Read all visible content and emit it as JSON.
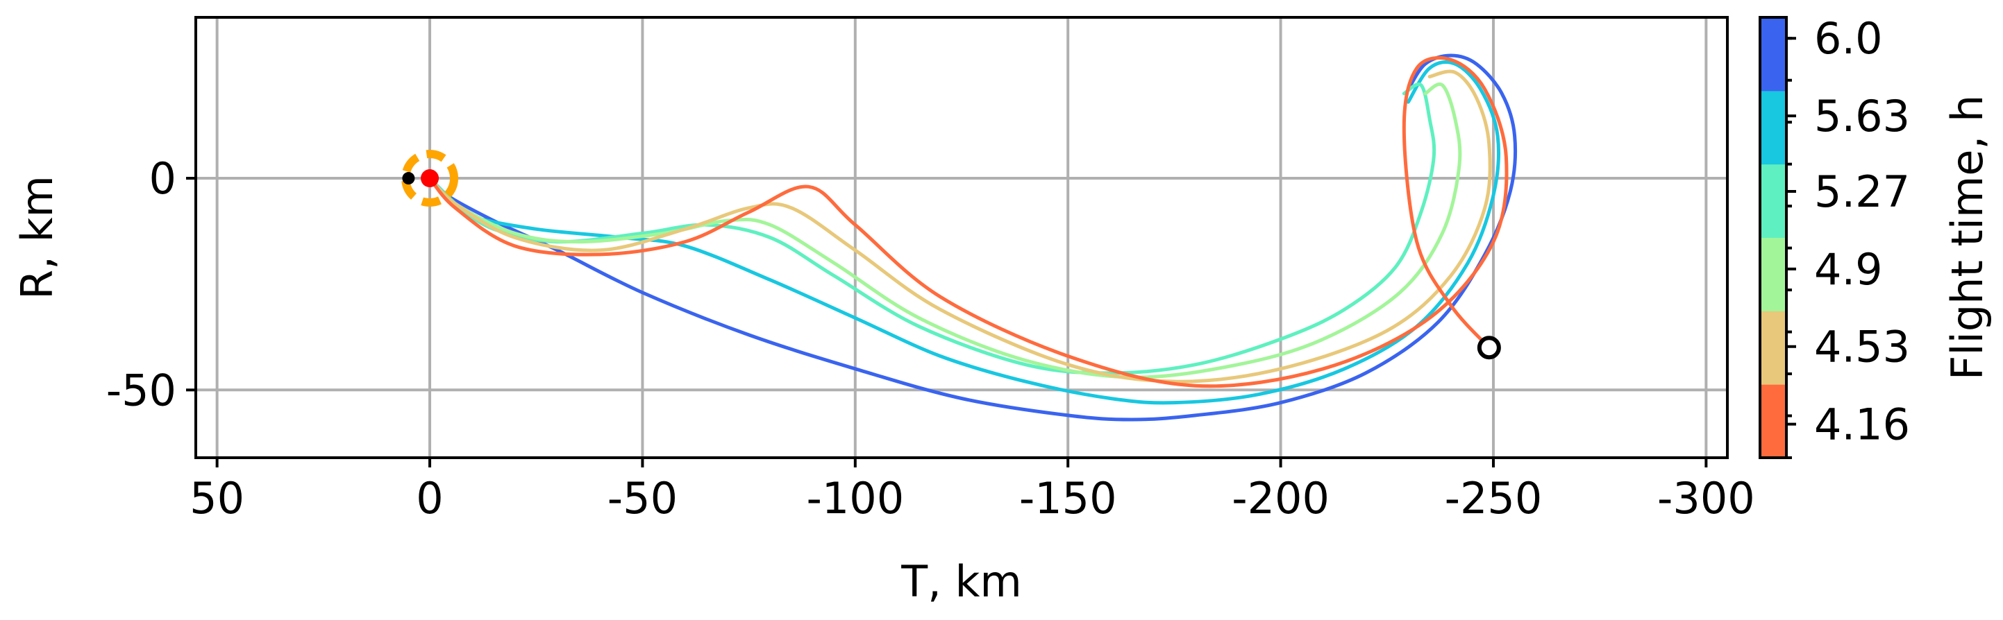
{
  "chart_data": {
    "type": "line",
    "title": "",
    "xlabel": "T, km",
    "ylabel": "R, km",
    "xlim": [
      55,
      -305
    ],
    "ylim": [
      -66,
      38
    ],
    "x_ticks": [
      50,
      0,
      -50,
      -100,
      -150,
      -200,
      -250,
      -300
    ],
    "x_tick_labels": [
      "50",
      "0",
      "-50",
      "-100",
      "-150",
      "-200",
      "-250",
      "-300"
    ],
    "y_ticks": [
      0,
      -50
    ],
    "y_tick_labels": [
      "0",
      "-50"
    ],
    "grid": true,
    "colorbar": {
      "label": "Flight time, h",
      "range": [
        4.0,
        6.1
      ],
      "ticks": [
        6.0,
        5.63,
        5.27,
        4.9,
        4.53,
        4.16
      ],
      "tick_labels": [
        "6.0",
        "5.63",
        "5.27",
        "4.9",
        "4.53",
        "4.16"
      ],
      "colors": [
        "#ff6b3d",
        "#e8c87a",
        "#a3f59a",
        "#5ef0c0",
        "#18c7e0",
        "#3a64ef"
      ]
    },
    "series": [
      {
        "value": 6.0,
        "color": "#3a64ef",
        "points": [
          [
            0,
            0
          ],
          [
            -4,
            -4
          ],
          [
            -15,
            -10
          ],
          [
            -30,
            -17
          ],
          [
            -50,
            -27
          ],
          [
            -75,
            -37
          ],
          [
            -100,
            -45
          ],
          [
            -125,
            -52
          ],
          [
            -150,
            -56
          ],
          [
            -165,
            -57
          ],
          [
            -180,
            -56
          ],
          [
            -200,
            -53
          ],
          [
            -220,
            -46
          ],
          [
            -237,
            -34
          ],
          [
            -248,
            -18
          ],
          [
            -254,
            -3
          ],
          [
            -255,
            10
          ],
          [
            -252,
            20
          ],
          [
            -246,
            27
          ],
          [
            -240,
            29
          ],
          [
            -234,
            27
          ],
          [
            -230,
            21
          ]
        ]
      },
      {
        "value": 5.63,
        "color": "#18c7e0",
        "points": [
          [
            0,
            0
          ],
          [
            -5,
            -5
          ],
          [
            -10,
            -9
          ],
          [
            -25,
            -12
          ],
          [
            -45,
            -14
          ],
          [
            -60,
            -16
          ],
          [
            -80,
            -24
          ],
          [
            -100,
            -33
          ],
          [
            -120,
            -42
          ],
          [
            -140,
            -48
          ],
          [
            -160,
            -52
          ],
          [
            -175,
            -53
          ],
          [
            -195,
            -51
          ],
          [
            -215,
            -45
          ],
          [
            -232,
            -35
          ],
          [
            -244,
            -20
          ],
          [
            -250,
            -4
          ],
          [
            -251,
            10
          ],
          [
            -247,
            21
          ],
          [
            -241,
            27
          ],
          [
            -235,
            26
          ],
          [
            -230,
            18
          ]
        ]
      },
      {
        "value": 5.27,
        "color": "#5ef0c0",
        "points": [
          [
            0,
            0
          ],
          [
            -6,
            -6
          ],
          [
            -15,
            -12
          ],
          [
            -30,
            -15
          ],
          [
            -50,
            -13
          ],
          [
            -65,
            -11
          ],
          [
            -80,
            -14
          ],
          [
            -95,
            -23
          ],
          [
            -115,
            -35
          ],
          [
            -140,
            -44
          ],
          [
            -160,
            -46
          ],
          [
            -180,
            -44
          ],
          [
            -200,
            -38
          ],
          [
            -215,
            -31
          ],
          [
            -227,
            -21
          ],
          [
            -233,
            -8
          ],
          [
            -236,
            5
          ],
          [
            -235,
            14
          ],
          [
            -233,
            22
          ],
          [
            -229,
            20
          ]
        ]
      },
      {
        "value": 4.9,
        "color": "#a3f59a",
        "points": [
          [
            0,
            0
          ],
          [
            -6,
            -6
          ],
          [
            -20,
            -13
          ],
          [
            -35,
            -15
          ],
          [
            -55,
            -13
          ],
          [
            -70,
            -10
          ],
          [
            -80,
            -11
          ],
          [
            -95,
            -20
          ],
          [
            -115,
            -33
          ],
          [
            -140,
            -43
          ],
          [
            -165,
            -47
          ],
          [
            -190,
            -44
          ],
          [
            -210,
            -38
          ],
          [
            -228,
            -27
          ],
          [
            -238,
            -13
          ],
          [
            -242,
            3
          ],
          [
            -241,
            14
          ],
          [
            -238,
            22
          ],
          [
            -234,
            20
          ]
        ]
      },
      {
        "value": 4.53,
        "color": "#e8c87a",
        "points": [
          [
            0,
            0
          ],
          [
            -6,
            -6
          ],
          [
            -20,
            -14
          ],
          [
            -40,
            -17
          ],
          [
            -60,
            -12
          ],
          [
            -75,
            -7
          ],
          [
            -85,
            -7
          ],
          [
            -100,
            -17
          ],
          [
            -120,
            -31
          ],
          [
            -150,
            -44
          ],
          [
            -175,
            -48
          ],
          [
            -200,
            -45
          ],
          [
            -225,
            -36
          ],
          [
            -240,
            -23
          ],
          [
            -248,
            -7
          ],
          [
            -249,
            8
          ],
          [
            -246,
            19
          ],
          [
            -241,
            25
          ],
          [
            -235,
            24
          ]
        ]
      },
      {
        "value": 4.16,
        "color": "#ff6b3d",
        "points": [
          [
            0,
            0
          ],
          [
            -6,
            -7
          ],
          [
            -20,
            -16
          ],
          [
            -40,
            -18
          ],
          [
            -60,
            -15
          ],
          [
            -75,
            -8
          ],
          [
            -89,
            -2
          ],
          [
            -100,
            -11
          ],
          [
            -120,
            -28
          ],
          [
            -150,
            -42
          ],
          [
            -180,
            -49
          ],
          [
            -210,
            -45
          ],
          [
            -235,
            -33
          ],
          [
            -250,
            -15
          ],
          [
            -253,
            5
          ],
          [
            -248,
            21
          ],
          [
            -240,
            28
          ],
          [
            -232,
            26
          ],
          [
            -229,
            12
          ],
          [
            -232,
            -15
          ],
          [
            -240,
            -30
          ],
          [
            -249,
            -40
          ]
        ]
      }
    ],
    "markers": [
      {
        "name": "target-zone",
        "x": 0,
        "y": 0,
        "style": "dashed-circle",
        "color": "#ffa500"
      },
      {
        "name": "target-point",
        "x": 0,
        "y": 0,
        "style": "filled-dot",
        "color": "#ff0000"
      },
      {
        "name": "start-point",
        "x": -249,
        "y": -40,
        "style": "open-circle",
        "color": "#000000"
      },
      {
        "name": "black-dot",
        "x": 5,
        "y": 0,
        "style": "filled-dot",
        "color": "#000000"
      }
    ]
  }
}
